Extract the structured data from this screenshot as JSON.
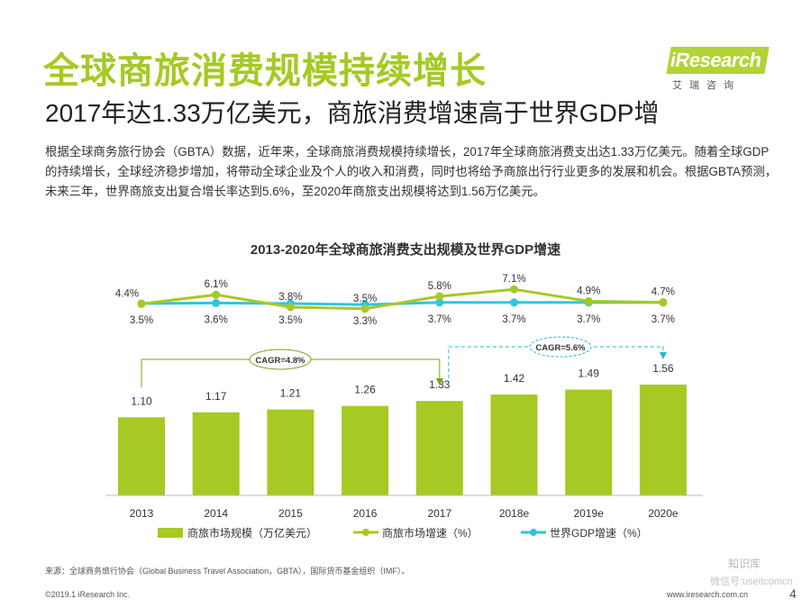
{
  "header": {
    "title": "全球商旅消费规模持续增长",
    "subtitle": "2017年达1.33万亿美元，商旅消费增速高于世界GDP增"
  },
  "body": {
    "text": "根据全球商务旅行协会（GBTA）数据，近年来，全球商旅消费规模持续增长，2017年全球商旅消费支出达1.33万亿美元。随着全球GDP的持续增长，全球经济稳步增加，将带动全球企业及个人的收入和消费，同时也将给予商旅出行行业更多的发展和机会。根据GBTA预测，未来三年，世界商旅支出复合增长率达到5.6%，至2020年商旅支出规模将达到1.56万亿美元。"
  },
  "logo": {
    "brand": "iResearch",
    "sub": "艾瑞咨询"
  },
  "chart_data": {
    "type": "bar",
    "title": "2013-2020年全球商旅消费支出规模及世界GDP增速",
    "categories": [
      "2013",
      "2014",
      "2015",
      "2016",
      "2017",
      "2018e",
      "2019e",
      "2020e"
    ],
    "series": [
      {
        "name": "商旅市场规模（万亿美元）",
        "type": "bar",
        "color": "#a6c923",
        "values": [
          1.1,
          1.17,
          1.21,
          1.26,
          1.33,
          1.42,
          1.49,
          1.56
        ],
        "labels": [
          "1.10",
          "1.17",
          "1.21",
          "1.26",
          "1.33",
          "1.42",
          "1.49",
          "1.56"
        ]
      },
      {
        "name": "商旅市场增速（%）",
        "type": "line",
        "color": "#a6c923",
        "values": [
          4.4,
          6.1,
          3.8,
          3.5,
          5.8,
          7.1,
          4.9,
          4.7
        ],
        "labels": [
          "4.4%",
          "6.1%",
          "3.8%",
          "3.5%",
          "5.8%",
          "7.1%",
          "4.9%",
          "4.7%"
        ]
      },
      {
        "name": "世界GDP增速（%）",
        "type": "line",
        "color": "#33c3e0",
        "values": [
          3.5,
          3.6,
          3.5,
          3.3,
          3.7,
          3.7,
          3.7,
          3.7
        ],
        "labels": [
          "3.5%",
          "3.6%",
          "3.5%",
          "3.3%",
          "3.7%",
          "3.7%",
          "3.7%",
          "3.7%"
        ]
      }
    ],
    "annotations": [
      {
        "text": "CAGR=4.8%",
        "from": "2013",
        "to": "2017"
      },
      {
        "text": "CAGR=5.6%",
        "from": "2017",
        "to": "2020e"
      }
    ],
    "legend": "bottom"
  },
  "footer": {
    "source": "来源：全球商务旅行协会（Global Business Travel Association，GBTA），国际货币基金组织（IMF）。",
    "copyright": "©2019.1 iResearch Inc.",
    "url": "www.iresearch.com.cn",
    "page": "4",
    "watermark": "知识库",
    "watermark2": "微信号:useitcomcn"
  }
}
